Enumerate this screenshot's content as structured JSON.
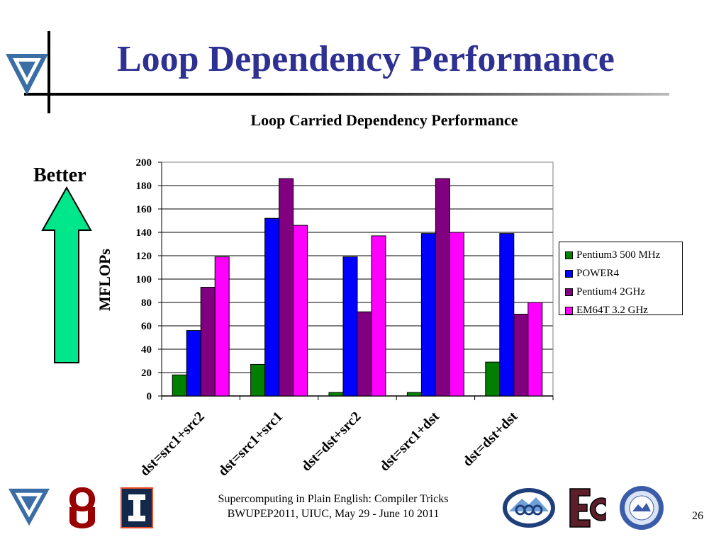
{
  "slide": {
    "title": "Loop Dependency Performance",
    "better_label": "Better",
    "footer_line1": "Supercomputing in Plain English: Compiler Tricks",
    "footer_line2": "BWUPEP2011, UIUC, May 29 - June 10 2011",
    "page_number": "26",
    "title_color": "#2e3192",
    "arrow_color": "#00e68a",
    "logos": [
      "oscer-logo",
      "ou-logo",
      "illinois-logo",
      "ccc-logo",
      "ec-logo",
      "university-seal-logo"
    ]
  },
  "chart_data": {
    "type": "bar",
    "title": "Loop Carried Dependency Performance",
    "xlabel": "",
    "ylabel": "MFLOPs",
    "ylim": [
      0,
      200
    ],
    "yticks": [
      0,
      20,
      40,
      60,
      80,
      100,
      120,
      140,
      160,
      180,
      200
    ],
    "grid": true,
    "legend_position": "right",
    "categories": [
      "dst=src1+src2",
      "dst=src1+src1",
      "dst=dst+src2",
      "dst=src1+dst",
      "dst=dst+dst"
    ],
    "series": [
      {
        "name": "Pentium3 500 MHz",
        "color": "#008000",
        "values": [
          18,
          27,
          3,
          3,
          29
        ]
      },
      {
        "name": "POWER4",
        "color": "#0000ff",
        "values": [
          56,
          152,
          119,
          139,
          139
        ]
      },
      {
        "name": "Pentium4 2GHz",
        "color": "#800080",
        "values": [
          93,
          186,
          72,
          186,
          70
        ]
      },
      {
        "name": "EM64T 3.2 GHz",
        "color": "#ff00ff",
        "values": [
          119,
          146,
          137,
          140,
          80
        ]
      }
    ]
  }
}
